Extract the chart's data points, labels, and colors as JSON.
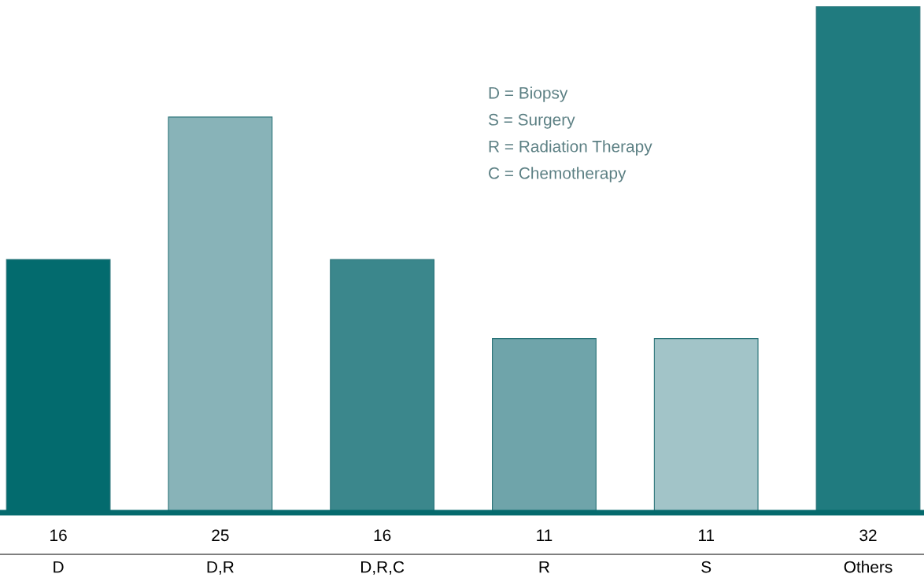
{
  "chart_data": {
    "type": "bar",
    "categories": [
      "D",
      "D,R",
      "D,R,C",
      "R",
      "S",
      "Others"
    ],
    "values": [
      16,
      25,
      16,
      11,
      11,
      32
    ],
    "colors": [
      "#036b6e",
      "#88b3b8",
      "#3b878c",
      "#6fa4aa",
      "#a2c4c8",
      "#207b7f"
    ],
    "data_labels": true,
    "annotations": [
      "D = Biopsy",
      "S = Surgery",
      "R = Radiation Therapy",
      "C = Chemotherapy"
    ]
  }
}
